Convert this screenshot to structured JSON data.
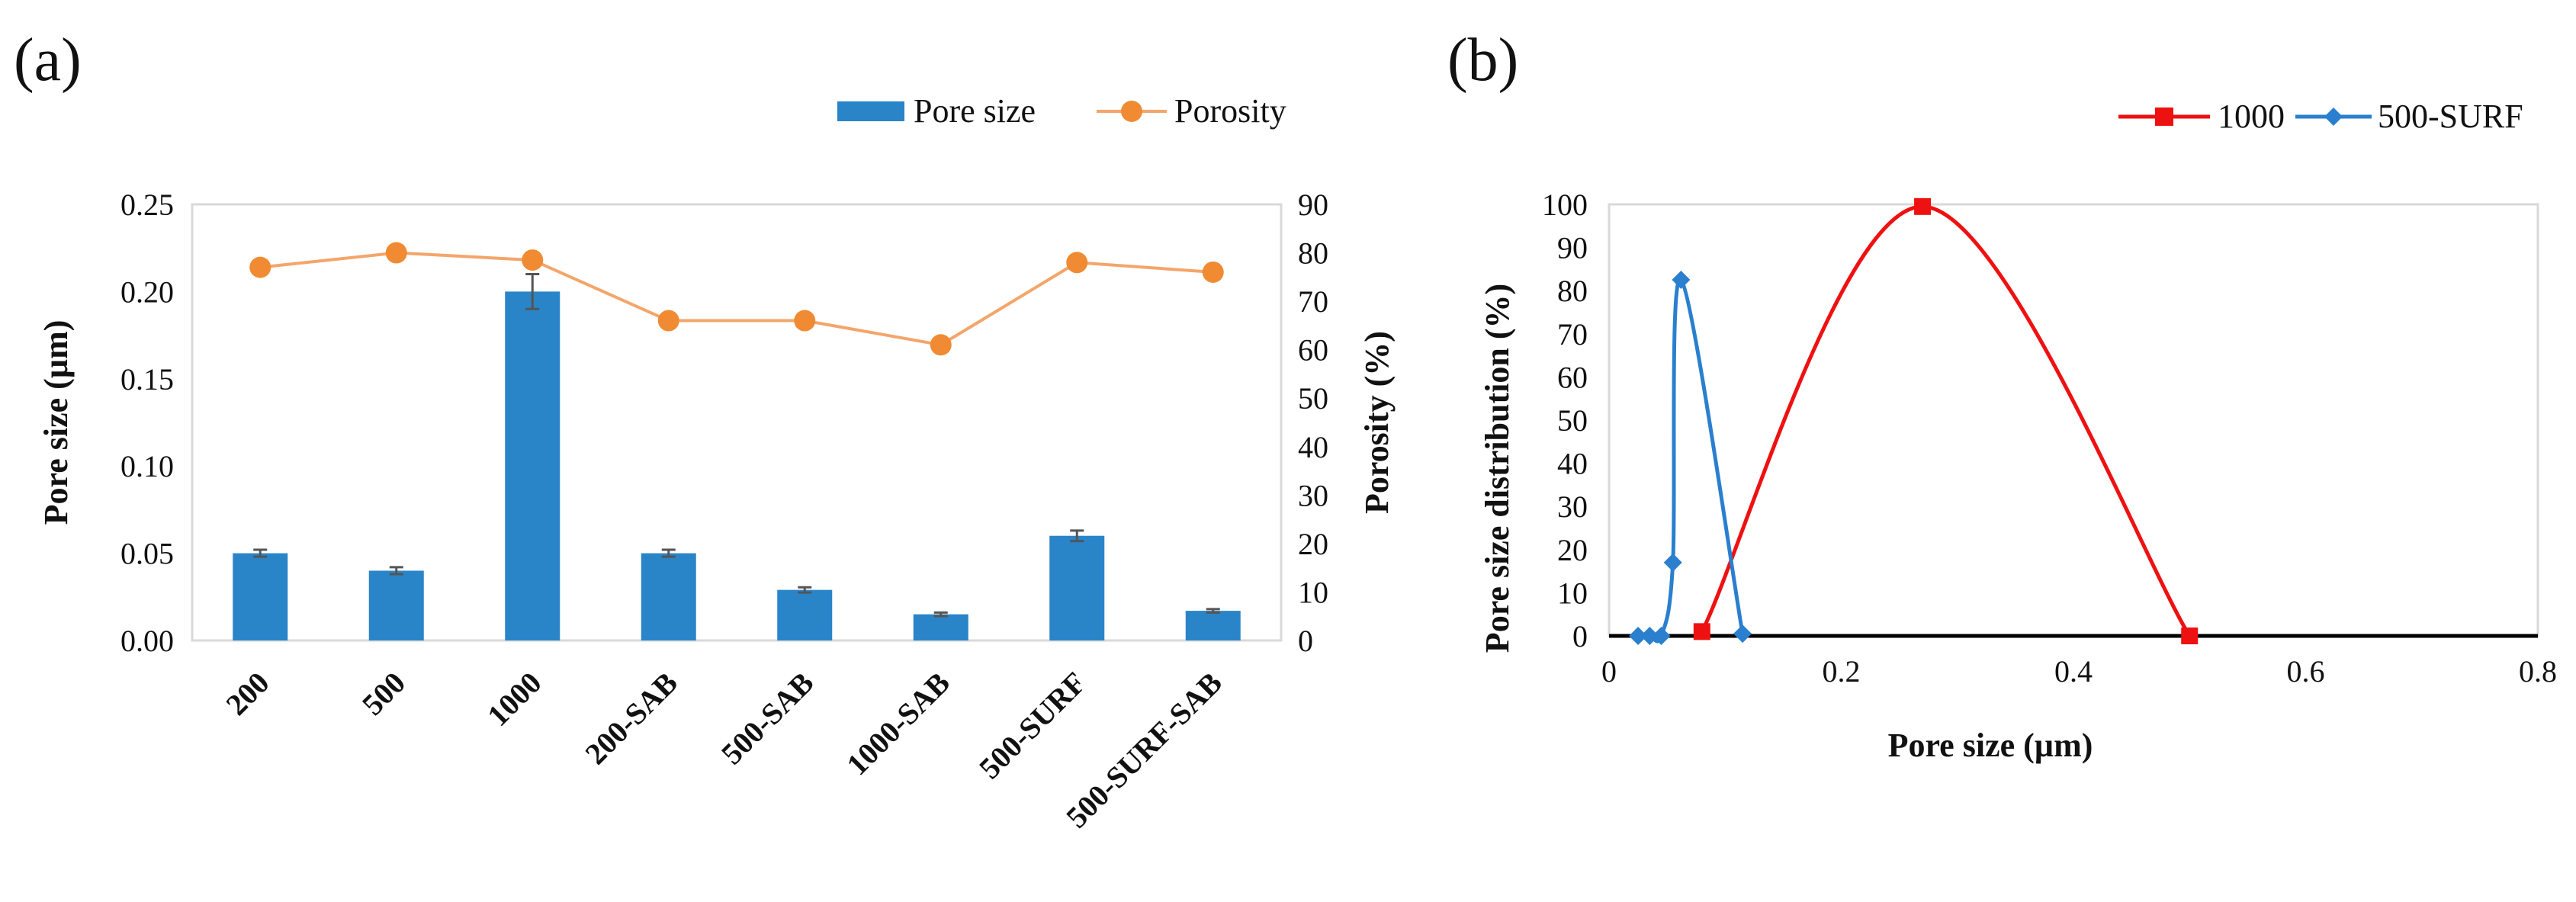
{
  "panels": {
    "a": {
      "label": "(a)"
    },
    "b": {
      "label": "(b)"
    }
  },
  "colors": {
    "bar": "#2a84c8",
    "porosity": "#f08b33",
    "porosity_line": "#f4a56a",
    "series_1000": "#ee1111",
    "series_500surf": "#2a7fce",
    "axis": "#000000",
    "frame": "#d9d9d9"
  },
  "chart_data": [
    {
      "type": "bar",
      "panel": "a",
      "categories": [
        "200",
        "500",
        "1000",
        "200-SAB",
        "500-SAB",
        "1000-SAB",
        "500-SURF",
        "500-SURF-SAB"
      ],
      "series": [
        {
          "name": "Pore size",
          "axis": "left",
          "type": "bar",
          "values": [
            0.05,
            0.04,
            0.2,
            0.05,
            0.029,
            0.015,
            0.06,
            0.017
          ],
          "errors": [
            0.002,
            0.002,
            0.01,
            0.002,
            0.0015,
            0.001,
            0.003,
            0.001
          ]
        },
        {
          "name": "Porosity",
          "axis": "right",
          "type": "line",
          "values": [
            77,
            80,
            78.5,
            66,
            66,
            61,
            78,
            76
          ]
        }
      ],
      "ylabel": "Pore size (µm)",
      "y2label": "Porosity (%)",
      "ylim": [
        0,
        0.25
      ],
      "y2lim": [
        0,
        90
      ],
      "yticks": [
        "0.00",
        "0.05",
        "0.10",
        "0.15",
        "0.20",
        "0.25"
      ],
      "y2ticks": [
        "0",
        "10",
        "20",
        "30",
        "40",
        "50",
        "60",
        "70",
        "80",
        "90"
      ],
      "legend": "top-right"
    },
    {
      "type": "line",
      "panel": "b",
      "series": [
        {
          "name": "1000",
          "points": [
            [
              0.08,
              1
            ],
            [
              0.27,
              99.5
            ],
            [
              0.5,
              0
            ]
          ]
        },
        {
          "name": "500-SURF",
          "points": [
            [
              0.025,
              0
            ],
            [
              0.035,
              0
            ],
            [
              0.045,
              0
            ],
            [
              0.055,
              17
            ],
            [
              0.062,
              82.5
            ],
            [
              0.115,
              0.5
            ]
          ]
        }
      ],
      "xlabel": "Pore size (µm)",
      "ylabel": "Pore size distribution (%)",
      "xlim": [
        0,
        0.8
      ],
      "ylim": [
        0,
        100
      ],
      "xticks": [
        "0",
        "0.2",
        "0.4",
        "0.6",
        "0.8"
      ],
      "yticks": [
        "0",
        "10",
        "20",
        "30",
        "40",
        "50",
        "60",
        "70",
        "80",
        "90",
        "100"
      ],
      "legend": "top-right"
    }
  ]
}
